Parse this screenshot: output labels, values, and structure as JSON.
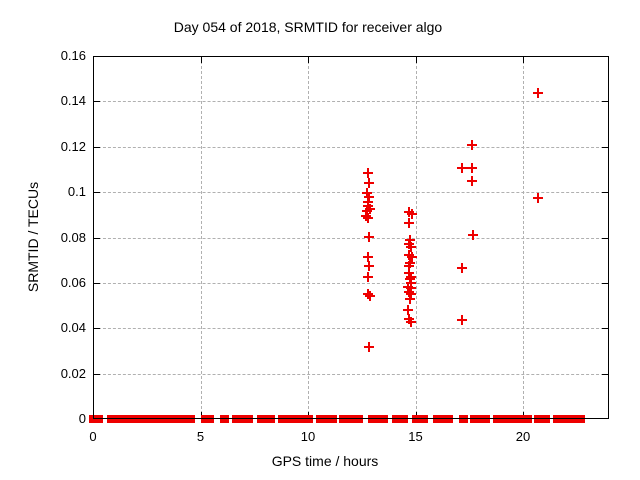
{
  "chart_data": {
    "type": "scatter",
    "title": "Day 054 of 2018, SRMTID for receiver algo",
    "xlabel": "GPS time / hours",
    "ylabel": "SRMTID / TECUs",
    "xlim": [
      0,
      24
    ],
    "ylim": [
      0,
      0.16
    ],
    "xticks": [
      0,
      5,
      10,
      15,
      20
    ],
    "xtick_labels": [
      "0",
      "5",
      "10",
      "15",
      "20"
    ],
    "yticks": [
      0,
      0.02,
      0.04,
      0.06,
      0.08,
      0.1,
      0.12,
      0.14,
      0.16
    ],
    "ytick_labels": [
      "0",
      "0.02",
      "0.04",
      "0.06",
      "0.08",
      "0.1",
      "0.12",
      "0.14",
      "0.16"
    ],
    "grid": true,
    "legend_position": "none",
    "marker": "plus",
    "colors": {
      "marker": "#ee0000",
      "grid": "#b0b0b0",
      "border": "#000000",
      "background": "#ffffff",
      "text": "#000000"
    },
    "series": [
      {
        "name": "SRMTID",
        "points": [
          [
            12.79,
            0.1084
          ],
          [
            12.84,
            0.104
          ],
          [
            12.74,
            0.0996
          ],
          [
            12.84,
            0.0978
          ],
          [
            12.79,
            0.0956
          ],
          [
            12.79,
            0.0939
          ],
          [
            12.88,
            0.0926
          ],
          [
            12.74,
            0.0917
          ],
          [
            12.7,
            0.0895
          ],
          [
            12.79,
            0.0886
          ],
          [
            12.84,
            0.0802
          ],
          [
            12.79,
            0.0714
          ],
          [
            12.84,
            0.0674
          ],
          [
            12.79,
            0.0626
          ],
          [
            12.79,
            0.0551
          ],
          [
            12.88,
            0.0542
          ],
          [
            12.84,
            0.0317
          ],
          [
            14.7,
            0.0912
          ],
          [
            14.84,
            0.0903
          ],
          [
            14.7,
            0.0864
          ],
          [
            14.74,
            0.0789
          ],
          [
            14.7,
            0.0771
          ],
          [
            14.79,
            0.0758
          ],
          [
            14.7,
            0.0723
          ],
          [
            14.84,
            0.0714
          ],
          [
            14.74,
            0.0688
          ],
          [
            14.7,
            0.0674
          ],
          [
            14.7,
            0.0643
          ],
          [
            14.79,
            0.0626
          ],
          [
            14.74,
            0.0617
          ],
          [
            14.79,
            0.0599
          ],
          [
            14.65,
            0.0582
          ],
          [
            14.79,
            0.0577
          ],
          [
            14.7,
            0.056
          ],
          [
            14.79,
            0.0551
          ],
          [
            14.74,
            0.0529
          ],
          [
            14.65,
            0.048
          ],
          [
            14.7,
            0.0441
          ],
          [
            14.79,
            0.0428
          ],
          [
            17.63,
            0.1208
          ],
          [
            17.16,
            0.1106
          ],
          [
            17.63,
            0.1106
          ],
          [
            17.63,
            0.1049
          ],
          [
            17.67,
            0.0811
          ],
          [
            17.16,
            0.0666
          ],
          [
            17.16,
            0.0436
          ],
          [
            20.7,
            0.1437
          ],
          [
            20.7,
            0.0974
          ]
        ]
      }
    ],
    "zero_band_segments": [
      [
        -0.2,
        0.45
      ],
      [
        0.65,
        4.75
      ],
      [
        5.0,
        5.65
      ],
      [
        5.9,
        6.05
      ],
      [
        6.45,
        7.45
      ],
      [
        7.65,
        8.45
      ],
      [
        8.6,
        10.25
      ],
      [
        10.35,
        11.35
      ],
      [
        11.45,
        12.55
      ],
      [
        12.8,
        13.7
      ],
      [
        13.9,
        14.65
      ],
      [
        14.85,
        15.6
      ],
      [
        15.8,
        16.75
      ],
      [
        17.0,
        17.2
      ],
      [
        17.55,
        17.75
      ],
      [
        17.85,
        18.45
      ],
      [
        18.6,
        20.4
      ],
      [
        20.5,
        21.25
      ],
      [
        21.4,
        22.9
      ]
    ]
  }
}
